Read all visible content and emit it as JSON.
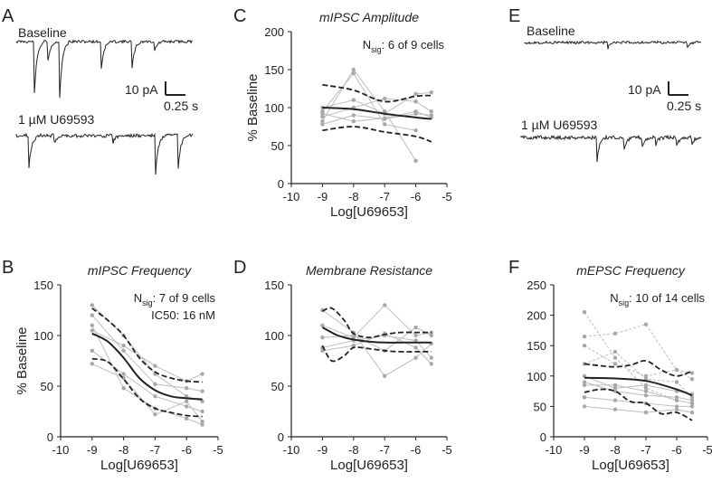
{
  "colors": {
    "ink": "#222222",
    "gray_line": "#bdbdbd",
    "gray_point": "#a8a8a8"
  },
  "panel_letters": {
    "A": "A",
    "B": "B",
    "C": "C",
    "D": "D",
    "E": "E",
    "F": "F"
  },
  "traces": {
    "A": {
      "baseline_label": "Baseline",
      "drug_label": "1 µM U69593",
      "scale_y": "10 pA",
      "scale_x": "0.25 s"
    },
    "E": {
      "baseline_label": "Baseline",
      "drug_label": "1 µM U69593",
      "scale_y": "10 pA",
      "scale_x": "0.25 s"
    }
  },
  "chart_data": [
    {
      "id": "C",
      "type": "line",
      "title": "mIPSC Amplitude",
      "xlabel": "Log[U69653]",
      "ylabel": "% Baseline",
      "xlim": [
        -10,
        -5
      ],
      "ylim": [
        0,
        200
      ],
      "xticks": [
        -10,
        -9,
        -8,
        -7,
        -6,
        -5
      ],
      "yticks": [
        0,
        50,
        100,
        150,
        200
      ],
      "nsig_prefix": "N",
      "nsig_sub": "sig",
      "nsig_text": ": 6 of 9 cells",
      "ic50_text": "",
      "x": [
        -9,
        -8,
        -7,
        -6,
        -5.5
      ],
      "fit": {
        "x": [
          -9,
          -8,
          -7,
          -6,
          -5.5
        ],
        "y": [
          100,
          98,
          92,
          87,
          85
        ]
      },
      "ci_upper": {
        "x": [
          -9,
          -8,
          -7,
          -6,
          -5.5
        ],
        "y": [
          130,
          123,
          108,
          115,
          116
        ]
      },
      "ci_lower": {
        "x": [
          -9,
          -8,
          -7,
          -6,
          -5.5
        ],
        "y": [
          70,
          75,
          68,
          62,
          55
        ]
      },
      "cells": [
        {
          "x": [
            -9,
            -8,
            -7,
            -6,
            -5.5
          ],
          "y": [
            82,
            150,
            95,
            30,
            null
          ],
          "dashed": false
        },
        {
          "x": [
            -9,
            -8,
            -7,
            -6,
            -5.5
          ],
          "y": [
            95,
            145,
            78,
            70,
            null
          ],
          "dashed": false
        },
        {
          "x": [
            -9,
            -8,
            -7,
            -6,
            -5.5
          ],
          "y": [
            100,
            110,
            92,
            118,
            120
          ],
          "dashed": false
        },
        {
          "x": [
            -9,
            -8,
            -7,
            -6,
            -5.5
          ],
          "y": [
            88,
            100,
            112,
            108,
            95
          ],
          "dashed": false
        },
        {
          "x": [
            -9,
            -8,
            -7,
            -6,
            -5.5
          ],
          "y": [
            78,
            90,
            85,
            92,
            90
          ],
          "dashed": false
        },
        {
          "x": [
            -9,
            -8,
            -7,
            -6,
            -5.5
          ],
          "y": [
            92,
            82,
            86,
            95,
            87
          ],
          "dashed": false
        }
      ]
    },
    {
      "id": "B",
      "type": "line",
      "title": "mIPSC Frequency",
      "xlabel": "Log[U69653]",
      "ylabel": "% Baseline",
      "xlim": [
        -10,
        -5
      ],
      "ylim": [
        0,
        150
      ],
      "xticks": [
        -10,
        -9,
        -8,
        -7,
        -6,
        -5
      ],
      "yticks": [
        0,
        50,
        100,
        150
      ],
      "nsig_prefix": "N",
      "nsig_sub": "sig",
      "nsig_text": ": 7 of 9 cells",
      "ic50_text": "IC50: 16 nM",
      "x": [
        -9,
        -8,
        -7,
        -6,
        -5.5
      ],
      "fit": {
        "x": [
          -9,
          -8.5,
          -8,
          -7.5,
          -7,
          -6.5,
          -6,
          -5.5
        ],
        "y": [
          102,
          94,
          78,
          58,
          46,
          40,
          38,
          37
        ]
      },
      "ci_upper": {
        "x": [
          -9,
          -8.5,
          -8,
          -7.5,
          -7,
          -6.5,
          -6,
          -5.5
        ],
        "y": [
          127,
          115,
          100,
          78,
          64,
          58,
          55,
          54
        ]
      },
      "ci_lower": {
        "x": [
          -9,
          -8.5,
          -8,
          -7.5,
          -7,
          -6.5,
          -6,
          -5.5
        ],
        "y": [
          77,
          74,
          57,
          38,
          28,
          24,
          21,
          20
        ]
      },
      "cells": [
        {
          "x": [
            -9,
            -8,
            -7,
            -6,
            -5.5
          ],
          "y": [
            130,
            100,
            62,
            40,
            35
          ],
          "dashed": false
        },
        {
          "x": [
            -9,
            -8,
            -7,
            -6,
            -5.5
          ],
          "y": [
            120,
            85,
            52,
            48,
            45
          ],
          "dashed": false
        },
        {
          "x": [
            -9,
            -8,
            -7,
            -6,
            -5.5
          ],
          "y": [
            105,
            90,
            70,
            55,
            62
          ],
          "dashed": false
        },
        {
          "x": [
            -9,
            -8,
            -7,
            -6,
            -5.5
          ],
          "y": [
            85,
            62,
            40,
            30,
            25
          ],
          "dashed": false
        },
        {
          "x": [
            -9,
            -8,
            -7,
            -6,
            -5.5
          ],
          "y": [
            72,
            58,
            22,
            35,
            15
          ],
          "dashed": false
        },
        {
          "x": [
            -9,
            -8,
            -7,
            -6,
            -5.5
          ],
          "y": [
            110,
            48,
            28,
            18,
            12
          ],
          "dashed": false
        }
      ]
    },
    {
      "id": "D",
      "type": "line",
      "title": "Membrane Resistance",
      "xlabel": "Log[U69653]",
      "ylabel": "",
      "xlim": [
        -10,
        -5
      ],
      "ylim": [
        0,
        150
      ],
      "xticks": [
        -10,
        -9,
        -8,
        -7,
        -6,
        -5
      ],
      "yticks": [
        0,
        50,
        100,
        150
      ],
      "nsig_prefix": "",
      "nsig_sub": "",
      "nsig_text": "",
      "ic50_text": "",
      "x": [
        -9,
        -8,
        -7,
        -6,
        -5.5
      ],
      "fit": {
        "x": [
          -9,
          -8.5,
          -8,
          -7.5,
          -7,
          -6.5,
          -6,
          -5.5
        ],
        "y": [
          108,
          100,
          96,
          94,
          93,
          93,
          93,
          93
        ]
      },
      "ci_upper": {
        "x": [
          -9,
          -8.7,
          -8.3,
          -8,
          -7.5,
          -7,
          -6.5,
          -6,
          -5.5
        ],
        "y": [
          124,
          127,
          115,
          102,
          98,
          101,
          103,
          103,
          103
        ]
      },
      "ci_lower": {
        "x": [
          -9,
          -8.7,
          -8.3,
          -8,
          -7.5,
          -7,
          -6.5,
          -6,
          -5.5
        ],
        "y": [
          90,
          75,
          80,
          88,
          87,
          85,
          84,
          84,
          84
        ]
      },
      "cells": [
        {
          "x": [
            -9,
            -8,
            -7,
            -6,
            -5.5
          ],
          "y": [
            125,
            103,
            60,
            78,
            92
          ],
          "dashed": false
        },
        {
          "x": [
            -9,
            -8,
            -7,
            -6,
            -5.5
          ],
          "y": [
            110,
            98,
            130,
            100,
            103
          ],
          "dashed": false
        },
        {
          "x": [
            -9,
            -8,
            -7,
            -6,
            -5.5
          ],
          "y": [
            98,
            100,
            85,
            108,
            100
          ],
          "dashed": false
        },
        {
          "x": [
            -9,
            -8,
            -7,
            -6,
            -5.5
          ],
          "y": [
            88,
            95,
            100,
            95,
            78
          ],
          "dashed": false
        },
        {
          "x": [
            -9,
            -8,
            -7,
            -6,
            -5.5
          ],
          "y": [
            85,
            90,
            102,
            88,
            72
          ],
          "dashed": false
        }
      ]
    },
    {
      "id": "F",
      "type": "line",
      "title": "mEPSC Frequency",
      "xlabel": "Log[U69653]",
      "ylabel": "",
      "xlim": [
        -10,
        -5
      ],
      "ylim": [
        0,
        250
      ],
      "xticks": [
        -10,
        -9,
        -8,
        -7,
        -6,
        -5
      ],
      "yticks": [
        0,
        50,
        100,
        150,
        200,
        250
      ],
      "nsig_prefix": "N",
      "nsig_sub": "sig",
      "nsig_text": ": 10 of 14 cells",
      "ic50_text": "",
      "x": [
        -9,
        -8,
        -7,
        -6,
        -5.5
      ],
      "fit": {
        "x": [
          -9,
          -8,
          -7,
          -6,
          -5.5
        ],
        "y": [
          97,
          96,
          92,
          78,
          68
        ]
      },
      "ci_upper": {
        "x": [
          -9,
          -8.5,
          -8,
          -7.5,
          -7,
          -6.5,
          -6,
          -5.5
        ],
        "y": [
          120,
          117,
          115,
          118,
          125,
          110,
          100,
          108
        ]
      },
      "ci_lower": {
        "x": [
          -9,
          -8.5,
          -8,
          -7.5,
          -7,
          -6.5,
          -6,
          -5.5
        ],
        "y": [
          73,
          78,
          75,
          58,
          55,
          38,
          40,
          27
        ]
      },
      "cells": [
        {
          "x": [
            -9,
            -8,
            -7,
            -6,
            -5.5
          ],
          "y": [
            205,
            130,
            80,
            60,
            null
          ],
          "dashed": true
        },
        {
          "x": [
            -9,
            -8,
            -7,
            -6,
            -5.5
          ],
          "y": [
            165,
            170,
            185,
            110,
            105
          ],
          "dashed": true
        },
        {
          "x": [
            -9,
            -8,
            -7,
            -6,
            -5.5
          ],
          "y": [
            150,
            120,
            100,
            110,
            95
          ],
          "dashed": true
        },
        {
          "x": [
            -9,
            -8,
            -7,
            -6,
            -5.5
          ],
          "y": [
            120,
            140,
            95,
            90,
            65
          ],
          "dashed": true
        },
        {
          "x": [
            -9,
            -8,
            -7,
            -6,
            -5.5
          ],
          "y": [
            100,
            80,
            85,
            75,
            70
          ],
          "dashed": false
        },
        {
          "x": [
            -9,
            -8,
            -7,
            -6,
            -5.5
          ],
          "y": [
            90,
            75,
            68,
            65,
            60
          ],
          "dashed": false
        },
        {
          "x": [
            -9,
            -8,
            -7,
            -6,
            -5.5
          ],
          "y": [
            85,
            85,
            75,
            60,
            55
          ],
          "dashed": false
        },
        {
          "x": [
            -9,
            -8,
            -7,
            -6,
            -5.5
          ],
          "y": [
            65,
            60,
            55,
            50,
            50
          ],
          "dashed": false
        },
        {
          "x": [
            -9,
            -8,
            -7,
            -6,
            -5.5
          ],
          "y": [
            50,
            45,
            40,
            45,
            40
          ],
          "dashed": false
        }
      ]
    }
  ]
}
